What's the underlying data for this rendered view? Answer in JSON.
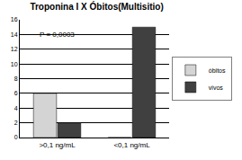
{
  "chart_data": {
    "type": "bar",
    "title": "Troponina I X Óbitos(Multisitio)",
    "categories": [
      ">0,1 ng/mL",
      "<0,1 ng/mL"
    ],
    "series": [
      {
        "name": "óbitos",
        "color": "#d4d4d4",
        "values": [
          6,
          0
        ]
      },
      {
        "name": "vivos",
        "color": "#404040",
        "values": [
          2,
          15
        ]
      }
    ],
    "ylim": [
      0,
      16
    ],
    "yticks": [
      0,
      2,
      4,
      6,
      8,
      10,
      12,
      14,
      16
    ],
    "grid": true,
    "legend": "right",
    "annotations": [
      "P = 0,0003"
    ]
  }
}
